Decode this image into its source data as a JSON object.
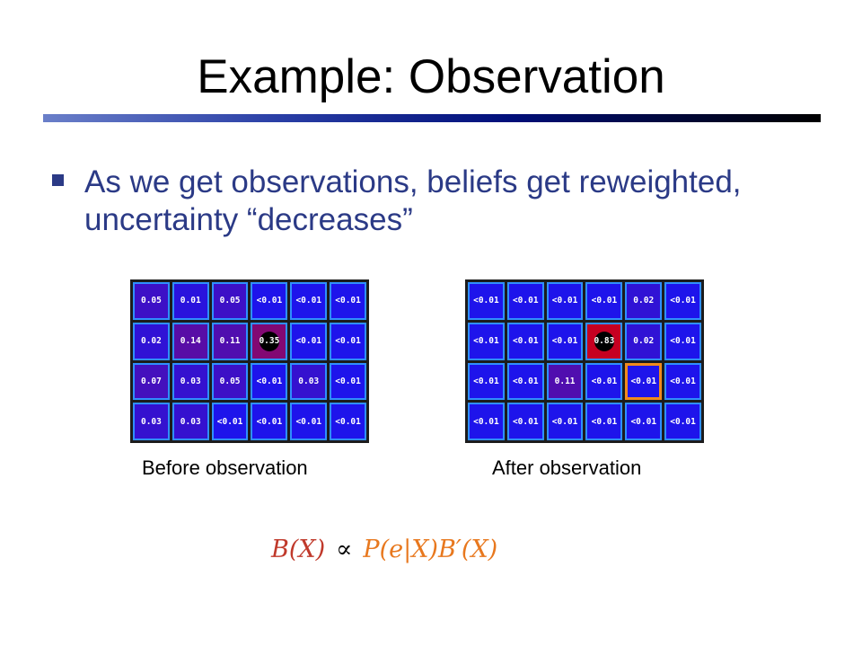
{
  "title": "Example: Observation",
  "bullet": "As we get observations, beliefs get reweighted, uncertainty “decreases”",
  "colors": {
    "title_rule": "#000f7a",
    "bullet_text": "#2b3a86",
    "cell_border": "#2f8fff",
    "highlight": "#f08a1c",
    "formula_lhs": "#c0392b",
    "formula_rhs": "#e8781e"
  },
  "before": {
    "caption": "Before observation",
    "cells": [
      [
        "0.05",
        "0.01",
        "0.05",
        "<0.01",
        "<0.01",
        "<0.01"
      ],
      [
        "0.02",
        "0.14",
        "0.11",
        "0.35",
        "<0.01",
        "<0.01"
      ],
      [
        "0.07",
        "0.03",
        "0.05",
        "<0.01",
        "0.03",
        "<0.01"
      ],
      [
        "0.03",
        "0.03",
        "<0.01",
        "<0.01",
        "<0.01",
        "<0.01"
      ]
    ],
    "agent_cell": [
      1,
      3
    ]
  },
  "after": {
    "caption": "After observation",
    "cells": [
      [
        "<0.01",
        "<0.01",
        "<0.01",
        "<0.01",
        "0.02",
        "<0.01"
      ],
      [
        "<0.01",
        "<0.01",
        "<0.01",
        "0.83",
        "0.02",
        "<0.01"
      ],
      [
        "<0.01",
        "<0.01",
        "0.11",
        "<0.01",
        "<0.01",
        "<0.01"
      ],
      [
        "<0.01",
        "<0.01",
        "<0.01",
        "<0.01",
        "<0.01",
        "<0.01"
      ]
    ],
    "agent_cell": [
      1,
      3
    ],
    "highlight_cell": [
      2,
      4
    ]
  },
  "formula": {
    "lhs": "B(X)",
    "relation": "∝",
    "likelihood": "P(e|X)",
    "prior": "B′(X)"
  }
}
